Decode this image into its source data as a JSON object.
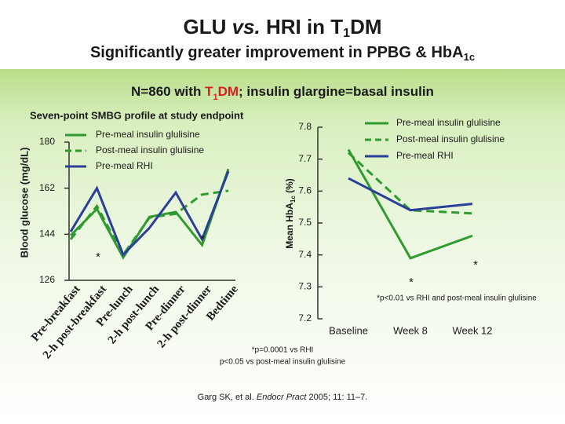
{
  "title": [
    "GLU ",
    "vs.",
    " HRI in T",
    "1",
    "DM"
  ],
  "subtitle": [
    "Significantly greater improvement in PPBG & HbA",
    "1c"
  ],
  "banner": [
    "N=860 with ",
    "T",
    "1",
    "DM",
    "; insulin glargine=basal insulin"
  ],
  "chart_data": [
    {
      "type": "line",
      "title": "Seven-point SMBG profile at study endpoint",
      "y_label": "Blood glucose (mg/dL)",
      "categories": [
        "Pre-breakfast",
        "2-h post-breakfast",
        "Pre-lunch",
        "2-h post-lunch",
        "Pre-dinner",
        "2-h post-dinner",
        "Bedtime"
      ],
      "ylim": [
        126,
        180
      ],
      "yticks": [
        126,
        144,
        162,
        180
      ],
      "series": [
        {
          "name": "Pre-meal insulin glulisine",
          "color": "#2f9a2f",
          "dashed": false,
          "values": [
            143.5,
            153.9,
            134.9,
            150.8,
            152.7,
            139.8,
            169.5
          ]
        },
        {
          "name": "Post-meal insulin glulisine",
          "color": "#2f9a2f",
          "dashed": true,
          "values": [
            142,
            155,
            136,
            150.5,
            152,
            159.5,
            161
          ]
        },
        {
          "name": "Pre-meal RHI",
          "color": "#2b3f99",
          "dashed": false,
          "values": [
            145,
            162,
            136,
            146.5,
            160.3,
            142,
            168.6
          ]
        }
      ],
      "annotations": [
        "*",
        "*"
      ]
    },
    {
      "type": "line",
      "y_label": [
        "Mean HbA",
        "1c",
        " (%)"
      ],
      "categories": [
        "Baseline",
        "Week 8",
        "Week 12"
      ],
      "ylim": [
        7.2,
        7.8
      ],
      "yticks": [
        7.2,
        7.3,
        7.4,
        7.5,
        7.6,
        7.7,
        7.8
      ],
      "series": [
        {
          "name": "Pre-meal insulin glulisine",
          "color": "#2f9a2f",
          "dashed": false,
          "values": [
            7.73,
            7.39,
            7.46
          ]
        },
        {
          "name": "Post-meal insulin glulisine",
          "color": "#2f9a2f",
          "dashed": true,
          "values": [
            7.72,
            7.54,
            7.53
          ]
        },
        {
          "name": "Pre-meal RHI",
          "color": "#2b3f99",
          "dashed": false,
          "values": [
            7.64,
            7.54,
            7.56
          ]
        }
      ],
      "annotations": [
        "*",
        "*"
      ],
      "footnote": "*p<0.01 vs RHI and post-meal insulin glulisine"
    }
  ],
  "footnotes": [
    "*p=0.0001 vs RHI",
    "p<0.05 vs post-meal insulin glulisine"
  ],
  "citation": [
    "Garg SK, et al. ",
    "Endocr Pract",
    " 2005; 11: 11–7."
  ]
}
